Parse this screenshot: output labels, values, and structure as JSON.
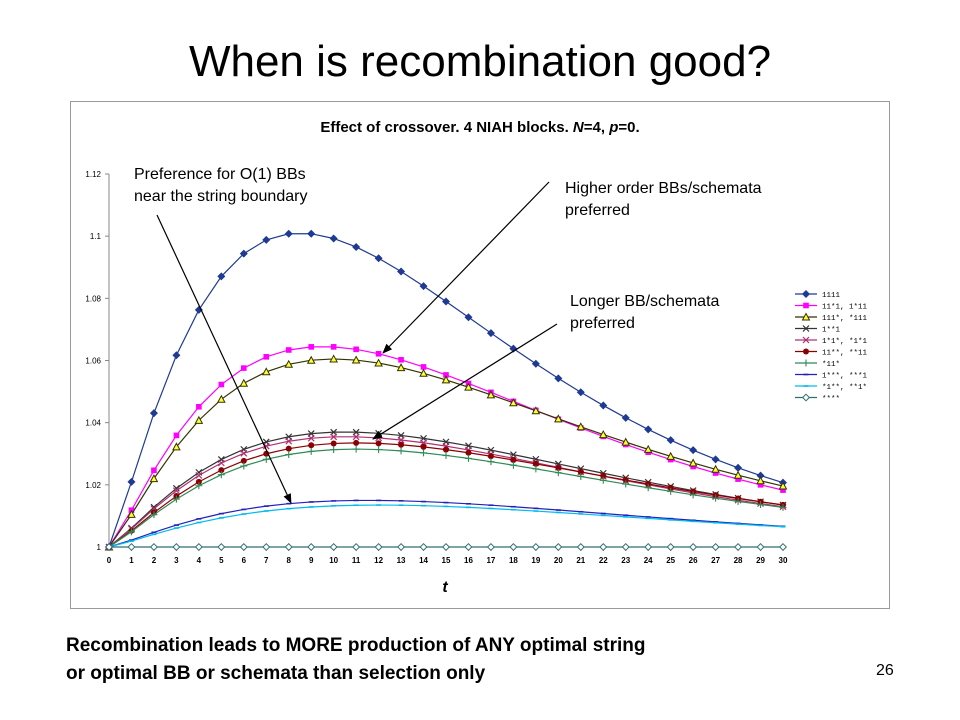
{
  "slide": {
    "title": "When is recombination good?",
    "footer_line1": "Recombination leads to MORE production of ANY optimal string",
    "footer_line2": "or optimal BB or schemata than selection only",
    "page_number": "26"
  },
  "annotations": {
    "order1_line1": "Preference for O(1) BBs",
    "order1_line2": "near the string boundary",
    "higher_line1": "Higher order BBs/schemata",
    "higher_line2": "preferred",
    "longer_line1": "Longer BB/schemata",
    "longer_line2": "preferred"
  },
  "chart_data": {
    "type": "line",
    "title_prefix": "Effect of crossover. 4 NIAH blocks. ",
    "title_n": "N",
    "title_n_val": "=4, ",
    "title_p": "p",
    "title_p_val": "=0.",
    "xlabel": "t",
    "ylabel": "",
    "x": [
      0,
      1,
      2,
      3,
      4,
      5,
      6,
      7,
      8,
      9,
      10,
      11,
      12,
      13,
      14,
      15,
      16,
      17,
      18,
      19,
      20,
      21,
      22,
      23,
      24,
      25,
      26,
      27,
      28,
      29,
      30
    ],
    "xlim": [
      0,
      30
    ],
    "ylim": [
      1,
      1.12
    ],
    "y_ticks": [
      "1",
      "1.02",
      "1.04",
      "1.06",
      "1.08",
      "1.1",
      "1.12"
    ],
    "grid": false,
    "legend_position": "right",
    "series": [
      {
        "name": "1111",
        "color": "#1f3a93",
        "marker": "diamond",
        "peak": 1.101,
        "peak_t": 8.5
      },
      {
        "name": "11*1, 1*11",
        "color": "#ff00ff",
        "marker": "square",
        "peak": 1.0645,
        "peak_t": 9.5
      },
      {
        "name": "111*, *111",
        "color": "#333300",
        "marker": "triangle",
        "peak": 1.0605,
        "peak_t": 10
      },
      {
        "name": "1**1",
        "color": "#333333",
        "marker": "x",
        "peak": 1.037,
        "peak_t": 10.5
      },
      {
        "name": "1*1*, *1*1",
        "color": "#b03070",
        "marker": "x",
        "peak": 1.0355,
        "peak_t": 10.5
      },
      {
        "name": "11**, **11",
        "color": "#8b0000",
        "marker": "circle",
        "peak": 1.0335,
        "peak_t": 11
      },
      {
        "name": "*11*",
        "color": "#2e8b57",
        "marker": "plus",
        "peak": 1.0315,
        "peak_t": 11
      },
      {
        "name": "1***, ***1",
        "color": "#2222bb",
        "marker": "dash",
        "peak": 1.015,
        "peak_t": 11.5
      },
      {
        "name": "*1**, **1*",
        "color": "#00bbee",
        "marker": "dash",
        "peak": 1.0135,
        "peak_t": 12
      },
      {
        "name": "****",
        "color": "#2f6f6f",
        "marker": "hollow-diamond",
        "peak": 1.0,
        "peak_t": 12
      }
    ]
  }
}
